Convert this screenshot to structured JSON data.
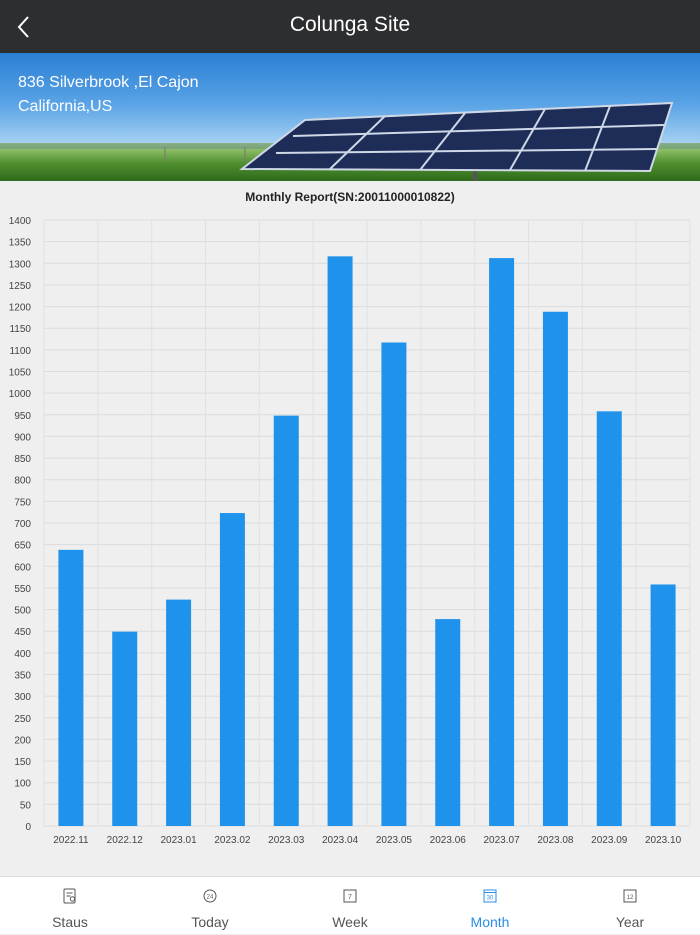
{
  "header": {
    "title": "Colunga Site"
  },
  "site": {
    "address_line1": "836 Silverbrook ,El Cajon",
    "address_line2": "California,US"
  },
  "colors": {
    "bar": "#1f93ec",
    "active_tab": "#2a8de8",
    "header_bg": "#2d2e30"
  },
  "chart_data": {
    "type": "bar",
    "title": "Monthly Report(SN:20011000010822)",
    "categories": [
      "2022.11",
      "2022.12",
      "2023.01",
      "2023.02",
      "2023.03",
      "2023.04",
      "2023.05",
      "2023.06",
      "2023.07",
      "2023.08",
      "2023.09",
      "2023.10"
    ],
    "values": [
      638,
      449,
      523,
      723,
      948,
      1316,
      1117,
      478,
      1312,
      1188,
      958,
      558
    ],
    "ylim": [
      0,
      1400
    ],
    "ytick_step": 50,
    "grid": true,
    "xlabel": "",
    "ylabel": ""
  },
  "tabs": [
    {
      "label": "Staus",
      "icon": "status-icon",
      "active": false
    },
    {
      "label": "Today",
      "icon": "today-24-icon",
      "icon_text": "24",
      "active": false
    },
    {
      "label": "Week",
      "icon": "week-7-icon",
      "icon_text": "7",
      "active": false
    },
    {
      "label": "Month",
      "icon": "month-30-icon",
      "icon_text": "30",
      "active": true
    },
    {
      "label": "Year",
      "icon": "year-12-icon",
      "icon_text": "12",
      "active": false
    }
  ]
}
